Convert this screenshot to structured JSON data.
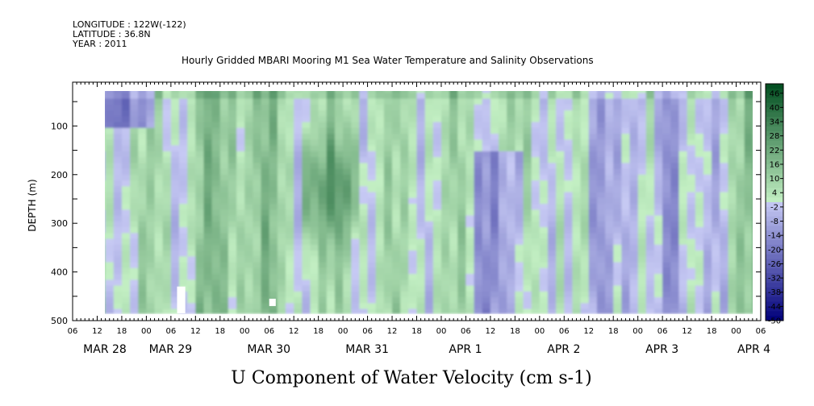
{
  "header": {
    "longitude": "LONGITUDE : 122W(-122)",
    "latitude": "LATITUDE : 36.8N",
    "year": "YEAR : 2011",
    "plot_title": "Hourly Gridded MBARI Mooring M1 Sea Water Temperature and Salinity Observations"
  },
  "chart_data": {
    "type": "heatmap",
    "title": "U Component of Water Velocity (cm s-1)",
    "ylabel": "DEPTH (m)",
    "y_reversed": true,
    "ylim": [
      500,
      10
    ],
    "ytick_values": [
      100,
      200,
      300,
      400,
      500
    ],
    "ytick_labels": [
      "100",
      "200",
      "300",
      "400",
      "500"
    ],
    "x_range_hours": [
      0,
      168
    ],
    "x_hour_tick_labels": [
      "06",
      "12",
      "18",
      "00",
      "06",
      "12",
      "18",
      "00",
      "06",
      "12",
      "18",
      "00",
      "06",
      "12",
      "18",
      "00",
      "06",
      "12",
      "18",
      "00",
      "06",
      "12",
      "18",
      "00",
      "06",
      "12",
      "18",
      "00",
      "06"
    ],
    "x_date_labels": [
      "MAR 28",
      "MAR 29",
      "MAR 30",
      "MAR 31",
      "APR  1",
      "APR  2",
      "APR  3",
      "APR  4"
    ],
    "colorbar": {
      "min": -50,
      "max": 50,
      "step": 2,
      "tick_labels": [
        "46",
        "40",
        "34",
        "28",
        "22",
        "16",
        "10",
        "4",
        "-2",
        "-8",
        "-14",
        "-20",
        "-26",
        "-32",
        "-38",
        "-44",
        "-50"
      ],
      "colors": {
        "strong_negative": "#00007a",
        "weak_negative": "#c7caf4",
        "weak_positive": "#c4f0c4",
        "strong_positive": "#004d1f"
      }
    },
    "data_extent": {
      "hour_start": 4,
      "hour_end": 168,
      "depth_top": 20,
      "depth_bottom": 485
    },
    "grid": false
  }
}
